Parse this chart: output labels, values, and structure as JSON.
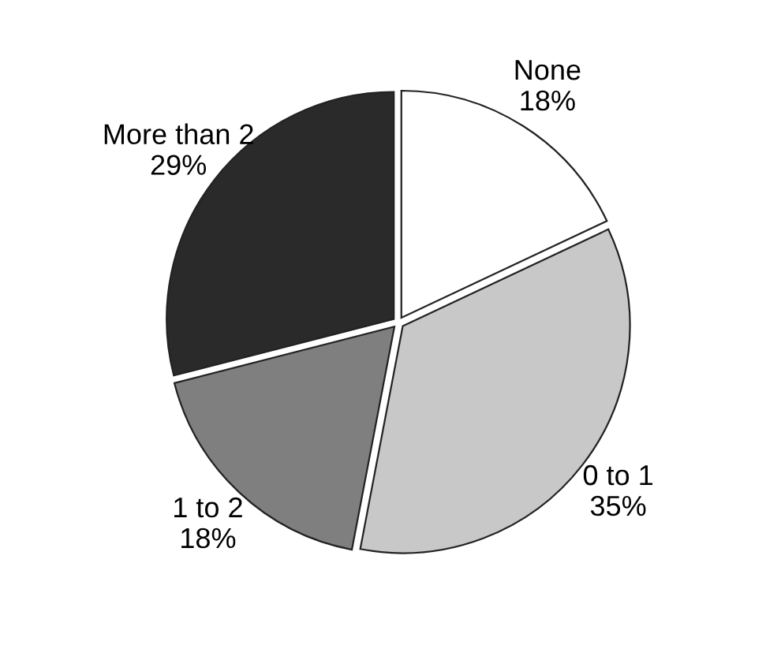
{
  "chart_data": {
    "type": "pie",
    "categories": [
      "None",
      "0 to 1",
      "1 to 2",
      "More than 2"
    ],
    "values": [
      18,
      35,
      18,
      29
    ],
    "value_labels": [
      "18%",
      "35%",
      "18%",
      "29%"
    ],
    "colors": [
      "#ffffff",
      "#c8c8c8",
      "#7f7f7f",
      "#2a2a2a"
    ],
    "legend": false
  }
}
